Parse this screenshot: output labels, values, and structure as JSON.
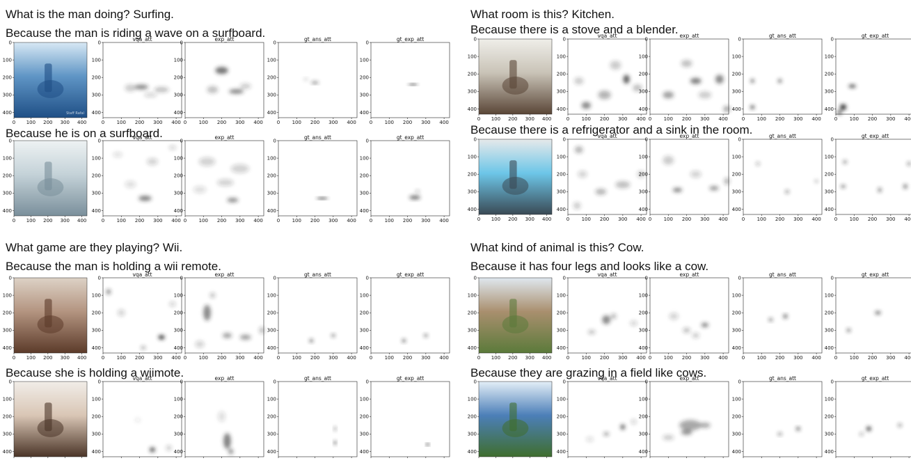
{
  "ticks": [
    "0",
    "100",
    "200",
    "300",
    "400"
  ],
  "map_titles": [
    "vqa_att",
    "exp_att",
    "gt_ans_att",
    "gt_exp_att"
  ],
  "panels": [
    {
      "question": "What is the man doing? Surfing.",
      "rows": [
        {
          "explanation": "Because the man is riding a wave on a surfboard.",
          "photo": {
            "scene": "surfer on a wave",
            "colors": [
              "#1f4f86",
              "#5f95c5",
              "#d7e8f4"
            ],
            "watermark": "Staff Rafal"
          },
          "maps": [
            [
              [
                210,
                255,
                75,
                28,
                0.55
              ],
              [
                150,
                260,
                60,
                40,
                0.25
              ],
              [
                320,
                270,
                80,
                30,
                0.3
              ],
              [
                260,
                300,
                70,
                25,
                0.2
              ]
            ],
            [
              [
                200,
                160,
                70,
                40,
                0.65
              ],
              [
                280,
                280,
                80,
                25,
                0.6
              ],
              [
                150,
                270,
                60,
                40,
                0.3
              ],
              [
                330,
                250,
                60,
                30,
                0.25
              ]
            ],
            [
              [
                200,
                230,
                40,
                12,
                0.75
              ],
              [
                150,
                210,
                25,
                15,
                0.2
              ]
            ],
            [
              [
                230,
                240,
                50,
                12,
                0.85
              ]
            ]
          ]
        },
        {
          "explanation": "Because he is on a surfboard.",
          "photo": {
            "scene": "boy standing on surfboard",
            "colors": [
              "#7a8f9b",
              "#c4d2d8",
              "#eef2f3"
            ]
          },
          "maps": [
            [
              [
                230,
                330,
                70,
                30,
                0.6
              ],
              [
                80,
                80,
                50,
                30,
                0.15
              ],
              [
                270,
                120,
                60,
                40,
                0.2
              ],
              [
                380,
                40,
                40,
                25,
                0.2
              ],
              [
                150,
                250,
                60,
                40,
                0.15
              ]
            ],
            [
              [
                260,
                340,
                60,
                25,
                0.55
              ],
              [
                120,
                120,
                90,
                50,
                0.2
              ],
              [
                300,
                160,
                100,
                50,
                0.2
              ],
              [
                220,
                240,
                90,
                40,
                0.2
              ],
              [
                80,
                280,
                70,
                40,
                0.15
              ]
            ],
            [
              [
                240,
                330,
                60,
                15,
                0.75
              ]
            ],
            [
              [
                240,
                325,
                60,
                22,
                0.7
              ],
              [
                255,
                290,
                20,
                12,
                0.5
              ]
            ]
          ]
        }
      ]
    },
    {
      "question": "What room is this? Kitchen.",
      "rows": [
        {
          "explanation": "Because there is a stove and a blender.",
          "photo": {
            "scene": "kitchen with window",
            "colors": [
              "#5a4637",
              "#c9c3b7",
              "#efeee9"
            ]
          },
          "maps": [
            [
              [
                320,
                230,
                35,
                50,
                0.75
              ],
              [
                100,
                380,
                50,
                40,
                0.55
              ],
              [
                200,
                320,
                70,
                50,
                0.35
              ],
              [
                260,
                150,
                60,
                50,
                0.25
              ],
              [
                380,
                280,
                50,
                40,
                0.3
              ],
              [
                60,
                240,
                50,
                40,
                0.25
              ]
            ],
            [
              [
                250,
                240,
                60,
                35,
                0.6
              ],
              [
                380,
                230,
                45,
                50,
                0.55
              ],
              [
                100,
                320,
                60,
                40,
                0.45
              ],
              [
                200,
                140,
                60,
                40,
                0.3
              ],
              [
                420,
                400,
                40,
                35,
                0.4
              ],
              [
                300,
                320,
                70,
                40,
                0.25
              ]
            ],
            [
              [
                50,
                240,
                18,
                20,
                0.9
              ],
              [
                200,
                240,
                18,
                20,
                0.9
              ],
              [
                50,
                390,
                22,
                22,
                0.9
              ]
            ],
            [
              [
                90,
                270,
                40,
                18,
                0.9
              ],
              [
                40,
                390,
                35,
                35,
                0.95
              ],
              [
                20,
                420,
                25,
                25,
                0.8
              ]
            ]
          ]
        },
        {
          "explanation": "Because there is a refrigerator and a sink in the room.",
          "photo": {
            "scene": "kitchen with blue window light",
            "colors": [
              "#3a4a55",
              "#6dc6e8",
              "#e6e9ea"
            ]
          },
          "maps": [
            [
              [
                60,
                60,
                45,
                40,
                0.35
              ],
              [
                180,
                300,
                60,
                35,
                0.35
              ],
              [
                300,
                260,
                80,
                40,
                0.3
              ],
              [
                80,
                200,
                50,
                40,
                0.2
              ],
              [
                400,
                200,
                40,
                40,
                0.25
              ],
              [
                50,
                380,
                40,
                40,
                0.25
              ]
            ],
            [
              [
                150,
                290,
                50,
                25,
                0.6
              ],
              [
                350,
                280,
                50,
                25,
                0.5
              ],
              [
                100,
                120,
                60,
                50,
                0.25
              ],
              [
                250,
                200,
                60,
                40,
                0.2
              ],
              [
                420,
                240,
                30,
                40,
                0.35
              ]
            ],
            [
              [
                80,
                140,
                18,
                18,
                0.5
              ],
              [
                240,
                300,
                18,
                18,
                0.7
              ],
              [
                400,
                240,
                16,
                16,
                0.4
              ]
            ],
            [
              [
                50,
                130,
                18,
                18,
                0.75
              ],
              [
                40,
                270,
                25,
                14,
                0.85
              ],
              [
                240,
                290,
                18,
                25,
                0.7
              ],
              [
                380,
                270,
                20,
                25,
                0.75
              ],
              [
                400,
                140,
                16,
                18,
                0.8
              ]
            ]
          ]
        }
      ]
    },
    {
      "question": "What game are they playing? Wii.",
      "rows": [
        {
          "explanation": "Because the man is holding a wii remote.",
          "photo": {
            "scene": "two boys in a living room",
            "colors": [
              "#5c3b2a",
              "#b39480",
              "#ddd2c6"
            ]
          },
          "maps": [
            [
              [
                320,
                340,
                35,
                25,
                0.95
              ],
              [
                30,
                80,
                25,
                30,
                0.55
              ],
              [
                220,
                400,
                25,
                20,
                0.45
              ],
              [
                100,
                200,
                40,
                40,
                0.2
              ],
              [
                380,
                150,
                35,
                30,
                0.2
              ]
            ],
            [
              [
                120,
                200,
                40,
                90,
                0.55
              ],
              [
                230,
                330,
                50,
                30,
                0.45
              ],
              [
                330,
                340,
                60,
                30,
                0.45
              ],
              [
                150,
                100,
                30,
                30,
                0.3
              ],
              [
                420,
                300,
                30,
                40,
                0.3
              ],
              [
                80,
                380,
                50,
                40,
                0.2
              ]
            ],
            [
              [
                180,
                360,
                18,
                18,
                0.9
              ],
              [
                300,
                330,
                16,
                16,
                0.9
              ]
            ],
            [
              [
                180,
                360,
                18,
                18,
                0.9
              ],
              [
                300,
                330,
                16,
                16,
                0.9
              ]
            ]
          ]
        },
        {
          "explanation": "Because she is holding a wiimote.",
          "photo": {
            "scene": "girl holding a wiimote",
            "colors": [
              "#4b3528",
              "#d9c6b5",
              "#f1ede8"
            ]
          },
          "maps": [
            [
              [
                270,
                390,
                30,
                28,
                0.8
              ],
              [
                360,
                380,
                30,
                30,
                0.25
              ],
              [
                190,
                220,
                30,
                25,
                0.1
              ]
            ],
            [
              [
                230,
                340,
                40,
                90,
                0.6
              ],
              [
                250,
                400,
                25,
                30,
                0.6
              ],
              [
                200,
                200,
                40,
                60,
                0.15
              ]
            ],
            [
              [
                310,
                270,
                16,
                18,
                0.6
              ],
              [
                310,
                350,
                18,
                16,
                0.9
              ]
            ],
            [
              [
                310,
                360,
                20,
                16,
                0.9
              ]
            ]
          ]
        }
      ]
    },
    {
      "question": "What kind of animal is this? Cow.",
      "rows": [
        {
          "explanation": "Because it has four legs and looks like a cow.",
          "photo": {
            "scene": "cows in a green field",
            "colors": [
              "#5b7a3a",
              "#a98f6e",
              "#dfe7ee"
            ]
          },
          "maps": [
            [
              [
                210,
                240,
                45,
                50,
                0.55
              ],
              [
                130,
                310,
                40,
                25,
                0.3
              ],
              [
                250,
                220,
                30,
                30,
                0.35
              ],
              [
                360,
                260,
                40,
                30,
                0.2
              ]
            ],
            [
              [
                300,
                270,
                40,
                25,
                0.6
              ],
              [
                200,
                300,
                40,
                30,
                0.3
              ],
              [
                130,
                220,
                50,
                40,
                0.2
              ],
              [
                250,
                330,
                40,
                30,
                0.25
              ]
            ],
            [
              [
                150,
                240,
                18,
                18,
                0.8
              ],
              [
                230,
                220,
                22,
                25,
                0.75
              ]
            ],
            [
              [
                230,
                200,
                30,
                16,
                0.9
              ],
              [
                70,
                300,
                18,
                18,
                0.85
              ]
            ]
          ]
        },
        {
          "explanation": "Because they are grazing in a field like cows.",
          "photo": {
            "scene": "lake with boat and field",
            "colors": [
              "#3f6e2e",
              "#4c7fb8",
              "#e3eef7"
            ]
          },
          "maps": [
            [
              [
                300,
                260,
                25,
                30,
                0.75
              ],
              [
                210,
                300,
                30,
                20,
                0.5
              ],
              [
                120,
                330,
                40,
                30,
                0.15
              ],
              [
                360,
                230,
                30,
                30,
                0.2
              ]
            ],
            [
              [
                220,
                250,
                120,
                60,
                0.4
              ],
              [
                200,
                290,
                60,
                30,
                0.5
              ],
              [
                300,
                250,
                60,
                30,
                0.4
              ],
              [
                100,
                320,
                60,
                30,
                0.25
              ]
            ],
            [
              [
                300,
                270,
                20,
                20,
                0.85
              ],
              [
                200,
                300,
                20,
                16,
                0.7
              ]
            ],
            [
              [
                180,
                270,
                25,
                25,
                0.95
              ],
              [
                350,
                250,
                18,
                18,
                0.7
              ],
              [
                140,
                300,
                16,
                16,
                0.6
              ]
            ]
          ]
        }
      ]
    }
  ]
}
